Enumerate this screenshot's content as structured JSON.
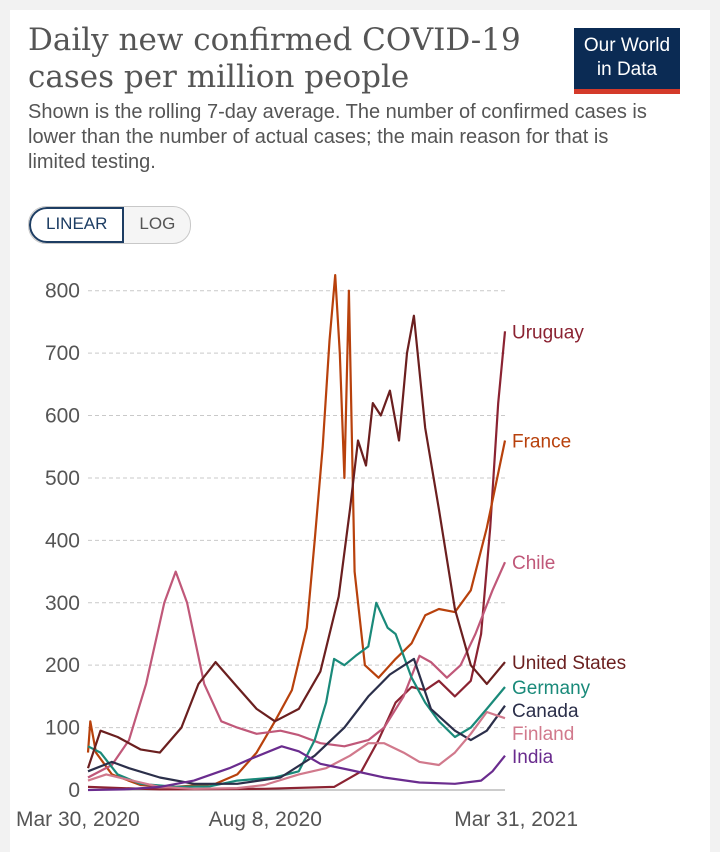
{
  "header": {
    "title_line1": "Daily new confirmed COVID-19",
    "title_line2": "cases per million people",
    "subtitle": "Shown is the rolling 7-day average. The number of confirmed cases is lower than the number of actual cases; the main reason for that is limited testing.",
    "logo_line1": "Our World",
    "logo_line2": "in Data"
  },
  "scale_toggle": {
    "linear": "LINEAR",
    "log": "LOG",
    "selected": "LINEAR"
  },
  "chart_data": {
    "type": "line",
    "title": "Daily new confirmed COVID-19 cases per million people",
    "y_ticks": [
      0,
      100,
      200,
      300,
      400,
      500,
      600,
      700,
      800
    ],
    "ylim": [
      0,
      830
    ],
    "x_start": "2020-03-30",
    "x_end": "2021-03-31",
    "x_tick_labels": [
      {
        "date": "2020-03-30",
        "label": "Mar 30, 2020"
      },
      {
        "date": "2020-08-08",
        "label": "Aug 8, 2020"
      },
      {
        "date": "2021-03-31",
        "label": "Mar 31, 2021"
      }
    ],
    "grid": true,
    "legend_placement": "right (labels at line ends)",
    "series": [
      {
        "name": "Uruguay",
        "color": "#8b2332",
        "label_value": 735,
        "points": [
          [
            "2020-03-30",
            5
          ],
          [
            "2020-06-01",
            1
          ],
          [
            "2020-09-01",
            2
          ],
          [
            "2020-11-01",
            5
          ],
          [
            "2020-11-25",
            30
          ],
          [
            "2020-12-10",
            80
          ],
          [
            "2020-12-25",
            140
          ],
          [
            "2021-01-08",
            165
          ],
          [
            "2021-01-20",
            160
          ],
          [
            "2021-02-01",
            175
          ],
          [
            "2021-02-15",
            150
          ],
          [
            "2021-03-01",
            175
          ],
          [
            "2021-03-10",
            250
          ],
          [
            "2021-03-18",
            420
          ],
          [
            "2021-03-25",
            620
          ],
          [
            "2021-03-31",
            735
          ]
        ]
      },
      {
        "name": "France",
        "color": "#b8410c",
        "label_value": 560,
        "points": [
          [
            "2020-03-30",
            60
          ],
          [
            "2020-04-01",
            110
          ],
          [
            "2020-04-06",
            60
          ],
          [
            "2020-04-20",
            25
          ],
          [
            "2020-05-15",
            8
          ],
          [
            "2020-06-15",
            5
          ],
          [
            "2020-07-20",
            10
          ],
          [
            "2020-08-08",
            25
          ],
          [
            "2020-08-25",
            60
          ],
          [
            "2020-09-10",
            110
          ],
          [
            "2020-09-25",
            160
          ],
          [
            "2020-10-08",
            260
          ],
          [
            "2020-10-15",
            400
          ],
          [
            "2020-10-22",
            550
          ],
          [
            "2020-10-28",
            720
          ],
          [
            "2020-11-02",
            825
          ],
          [
            "2020-11-06",
            700
          ],
          [
            "2020-11-10",
            500
          ],
          [
            "2020-11-14",
            800
          ],
          [
            "2020-11-19",
            350
          ],
          [
            "2020-11-28",
            200
          ],
          [
            "2020-12-10",
            180
          ],
          [
            "2020-12-25",
            210
          ],
          [
            "2021-01-08",
            235
          ],
          [
            "2021-01-20",
            280
          ],
          [
            "2021-02-01",
            290
          ],
          [
            "2021-02-15",
            285
          ],
          [
            "2021-03-01",
            320
          ],
          [
            "2021-03-15",
            420
          ],
          [
            "2021-03-31",
            560
          ]
        ]
      },
      {
        "name": "Chile",
        "color": "#c05879",
        "label_value": 365,
        "points": [
          [
            "2020-03-30",
            20
          ],
          [
            "2020-04-20",
            40
          ],
          [
            "2020-05-05",
            80
          ],
          [
            "2020-05-20",
            170
          ],
          [
            "2020-06-05",
            300
          ],
          [
            "2020-06-15",
            350
          ],
          [
            "2020-06-25",
            300
          ],
          [
            "2020-07-10",
            170
          ],
          [
            "2020-07-25",
            110
          ],
          [
            "2020-08-08",
            100
          ],
          [
            "2020-08-25",
            90
          ],
          [
            "2020-09-15",
            95
          ],
          [
            "2020-10-01",
            88
          ],
          [
            "2020-10-20",
            75
          ],
          [
            "2020-11-10",
            70
          ],
          [
            "2020-12-01",
            80
          ],
          [
            "2020-12-15",
            100
          ],
          [
            "2021-01-01",
            150
          ],
          [
            "2021-01-15",
            215
          ],
          [
            "2021-01-25",
            205
          ],
          [
            "2021-02-08",
            180
          ],
          [
            "2021-02-20",
            200
          ],
          [
            "2021-03-05",
            250
          ],
          [
            "2021-03-20",
            320
          ],
          [
            "2021-03-31",
            365
          ]
        ]
      },
      {
        "name": "Germany",
        "color": "#1a8a7a",
        "label_value": 165,
        "points": [
          [
            "2020-03-30",
            70
          ],
          [
            "2020-04-10",
            60
          ],
          [
            "2020-04-25",
            25
          ],
          [
            "2020-05-15",
            10
          ],
          [
            "2020-06-15",
            5
          ],
          [
            "2020-07-15",
            6
          ],
          [
            "2020-08-08",
            15
          ],
          [
            "2020-09-10",
            20
          ],
          [
            "2020-10-01",
            30
          ],
          [
            "2020-10-15",
            80
          ],
          [
            "2020-10-25",
            140
          ],
          [
            "2020-11-01",
            210
          ],
          [
            "2020-11-10",
            200
          ],
          [
            "2020-11-20",
            215
          ],
          [
            "2020-12-01",
            230
          ],
          [
            "2020-12-08",
            300
          ],
          [
            "2020-12-18",
            260
          ],
          [
            "2020-12-25",
            250
          ],
          [
            "2021-01-08",
            180
          ],
          [
            "2021-01-20",
            140
          ],
          [
            "2021-02-01",
            110
          ],
          [
            "2021-02-15",
            85
          ],
          [
            "2021-03-01",
            100
          ],
          [
            "2021-03-15",
            130
          ],
          [
            "2021-03-31",
            165
          ]
        ]
      },
      {
        "name": "United States",
        "color": "#6b1f1f",
        "label_value": 205,
        "points": [
          [
            "2020-03-30",
            35
          ],
          [
            "2020-04-10",
            95
          ],
          [
            "2020-04-25",
            85
          ],
          [
            "2020-05-15",
            65
          ],
          [
            "2020-06-01",
            60
          ],
          [
            "2020-06-20",
            100
          ],
          [
            "2020-07-05",
            170
          ],
          [
            "2020-07-20",
            205
          ],
          [
            "2020-08-08",
            165
          ],
          [
            "2020-08-25",
            130
          ],
          [
            "2020-09-10",
            110
          ],
          [
            "2020-10-01",
            130
          ],
          [
            "2020-10-20",
            190
          ],
          [
            "2020-11-05",
            310
          ],
          [
            "2020-11-15",
            450
          ],
          [
            "2020-11-22",
            560
          ],
          [
            "2020-11-29",
            520
          ],
          [
            "2020-12-05",
            620
          ],
          [
            "2020-12-12,",
            600
          ],
          [
            "2020-12-20",
            640
          ],
          [
            "2020-12-28",
            560
          ],
          [
            "2021-01-04",
            700
          ],
          [
            "2021-01-10",
            760
          ],
          [
            "2021-01-20",
            580
          ],
          [
            "2021-02-01",
            450
          ],
          [
            "2021-02-15",
            290
          ],
          [
            "2021-03-01",
            200
          ],
          [
            "2021-03-15",
            170
          ],
          [
            "2021-03-31",
            205
          ]
        ]
      },
      {
        "name": "Canada",
        "color": "#2b2f4a",
        "label_value": 135,
        "points": [
          [
            "2020-03-30",
            30
          ],
          [
            "2020-04-20",
            45
          ],
          [
            "2020-05-05",
            35
          ],
          [
            "2020-06-01",
            20
          ],
          [
            "2020-07-01",
            10
          ],
          [
            "2020-08-08",
            10
          ],
          [
            "2020-09-15",
            20
          ],
          [
            "2020-10-15",
            55
          ],
          [
            "2020-11-10",
            100
          ],
          [
            "2020-12-01",
            150
          ],
          [
            "2020-12-20",
            185
          ],
          [
            "2021-01-10",
            210
          ],
          [
            "2021-01-25",
            130
          ],
          [
            "2021-02-15",
            95
          ],
          [
            "2021-03-01",
            80
          ],
          [
            "2021-03-15",
            95
          ],
          [
            "2021-03-31",
            135
          ]
        ]
      },
      {
        "name": "Finland",
        "color": "#d1798c",
        "label_value": 115,
        "points": [
          [
            "2020-03-30",
            15
          ],
          [
            "2020-04-15",
            25
          ],
          [
            "2020-05-01",
            18
          ],
          [
            "2020-06-01",
            5
          ],
          [
            "2020-07-01",
            2
          ],
          [
            "2020-08-08",
            3
          ],
          [
            "2020-09-01",
            8
          ],
          [
            "2020-10-01",
            25
          ],
          [
            "2020-10-25",
            35
          ],
          [
            "2020-11-15",
            55
          ],
          [
            "2020-12-01",
            75
          ],
          [
            "2020-12-15",
            75
          ],
          [
            "2021-01-01",
            60
          ],
          [
            "2021-01-15",
            45
          ],
          [
            "2021-02-01",
            40
          ],
          [
            "2021-02-15",
            60
          ],
          [
            "2021-03-01",
            90
          ],
          [
            "2021-03-15",
            125
          ],
          [
            "2021-03-31",
            115
          ]
        ]
      },
      {
        "name": "India",
        "color": "#6a2c8e",
        "label_value": 55,
        "points": [
          [
            "2020-03-30",
            0
          ],
          [
            "2020-05-01",
            1
          ],
          [
            "2020-06-01",
            5
          ],
          [
            "2020-07-01",
            15
          ],
          [
            "2020-08-01",
            35
          ],
          [
            "2020-08-20",
            50
          ],
          [
            "2020-09-16",
            70
          ],
          [
            "2020-10-01",
            62
          ],
          [
            "2020-10-20",
            42
          ],
          [
            "2020-11-15",
            32
          ],
          [
            "2020-12-15",
            20
          ],
          [
            "2021-01-15",
            12
          ],
          [
            "2021-02-15",
            10
          ],
          [
            "2021-03-10",
            15
          ],
          [
            "2021-03-20",
            30
          ],
          [
            "2021-03-31",
            55
          ]
        ]
      }
    ]
  }
}
